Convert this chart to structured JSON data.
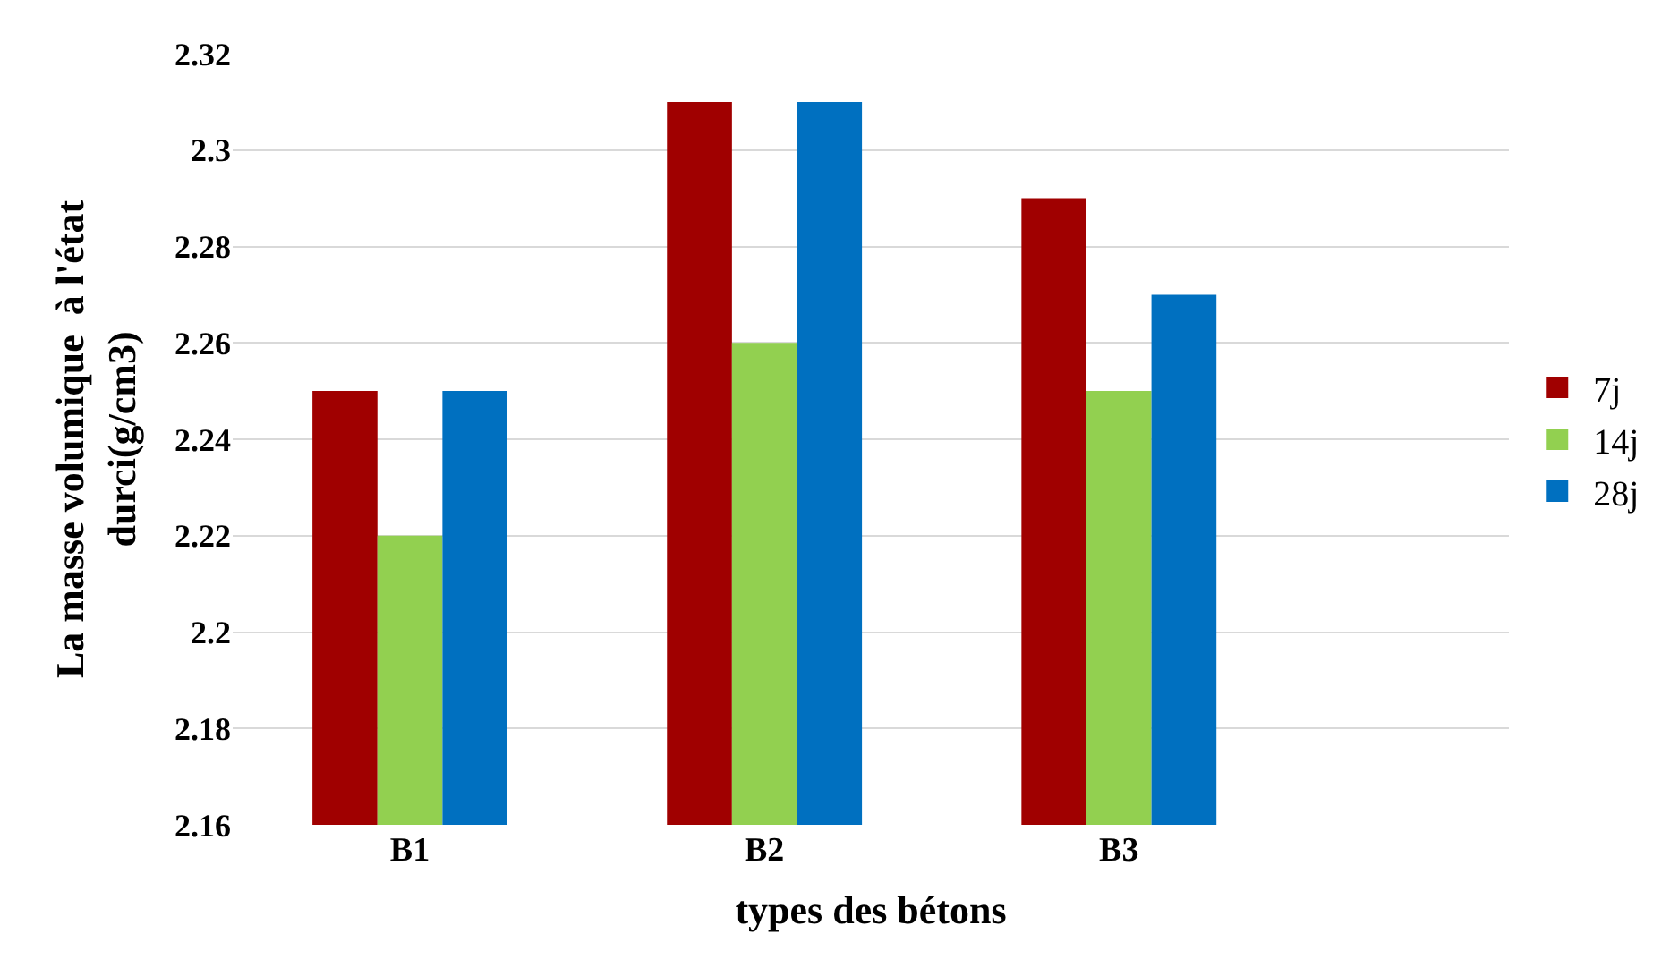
{
  "chart_data": {
    "type": "bar",
    "categories": [
      "B1",
      "B2",
      "B3"
    ],
    "series": [
      {
        "name": "7j",
        "color": "#a00000",
        "values": [
          2.25,
          2.31,
          2.29
        ]
      },
      {
        "name": "14j",
        "color": "#92d050",
        "values": [
          2.22,
          2.26,
          2.25
        ]
      },
      {
        "name": "28j",
        "color": "#0070c0",
        "values": [
          2.25,
          2.31,
          2.27
        ]
      }
    ],
    "xlabel": "types des bétons",
    "ylabel": "La masse volumique  à l'état\ndurci(g/cm3)",
    "ylim": [
      2.16,
      2.32
    ],
    "yticks": [
      2.16,
      2.18,
      2.2,
      2.22,
      2.24,
      2.26,
      2.28,
      2.3,
      2.32
    ],
    "grid": "y",
    "legend": "right"
  }
}
